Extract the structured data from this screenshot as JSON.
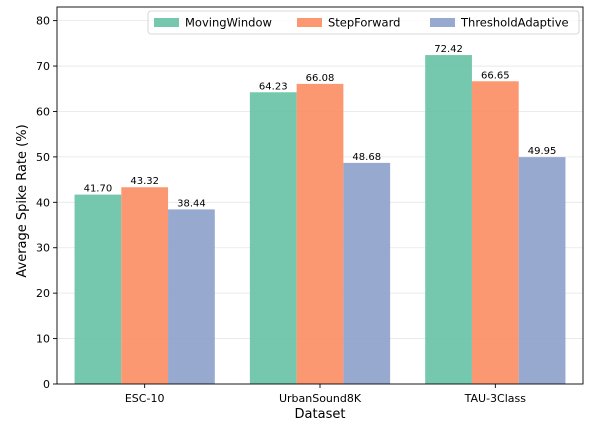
{
  "chart_data": {
    "type": "bar",
    "title": "",
    "xlabel": "Dataset",
    "ylabel": "Average Spike Rate (%)",
    "categories": [
      "ESC-10",
      "UrbanSound8K",
      "TAU-3Class"
    ],
    "series": [
      {
        "name": "MovingWindow",
        "color": "#66c2a5",
        "values": [
          41.7,
          64.23,
          72.42
        ],
        "labels": [
          "41.70",
          "64.23",
          "72.42"
        ]
      },
      {
        "name": "StepForward",
        "color": "#fc8d62",
        "values": [
          43.32,
          66.08,
          66.65
        ],
        "labels": [
          "43.32",
          "66.08",
          "66.65"
        ]
      },
      {
        "name": "ThresholdAdaptive",
        "color": "#8da0cb",
        "values": [
          38.44,
          48.68,
          49.95
        ],
        "labels": [
          "38.44",
          "48.68",
          "49.95"
        ]
      }
    ],
    "ylim": [
      0,
      83
    ],
    "yticks": [
      0,
      10,
      20,
      30,
      40,
      50,
      60,
      70,
      80
    ],
    "grid": "y",
    "legend": "top-right"
  }
}
